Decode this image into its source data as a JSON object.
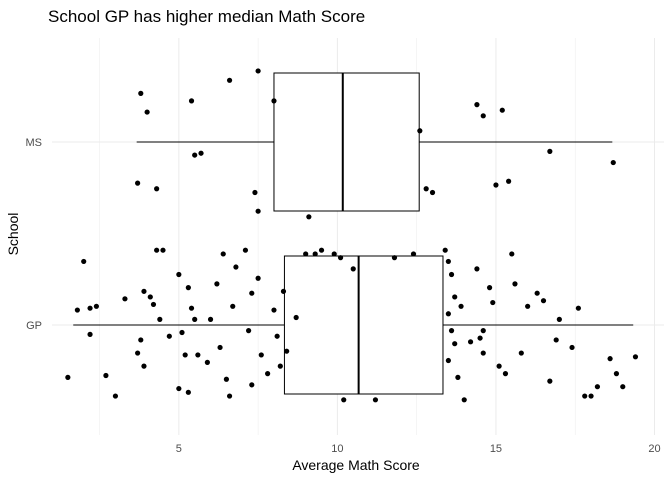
{
  "chart_data": {
    "type": "boxplot",
    "title": "School GP has higher median Math Score",
    "xlabel": "Average Math Score",
    "ylabel": "School",
    "xlim": [
      1.0,
      20.3
    ],
    "xticks": [
      5,
      10,
      15,
      20
    ],
    "categories": [
      "GP",
      "MS"
    ],
    "grid": true,
    "background": "#ffffff",
    "grid_color": "#ebebeb",
    "box": {
      "MS": {
        "whisker_low": 3.67,
        "q1": 8.0,
        "median": 10.17,
        "q3": 12.58,
        "whisker_high": 18.67
      },
      "GP": {
        "whisker_low": 1.67,
        "q1": 8.33,
        "median": 10.67,
        "q3": 13.33,
        "whisker_high": 19.33
      }
    },
    "jitter_points": {
      "MS": [
        [
          3.8,
          0.26
        ],
        [
          4.0,
          0.16
        ],
        [
          5.4,
          0.22
        ],
        [
          6.6,
          0.33
        ],
        [
          7.5,
          0.38
        ],
        [
          8.0,
          0.22
        ],
        [
          5.5,
          -0.07
        ],
        [
          5.7,
          -0.06
        ],
        [
          3.7,
          -0.22
        ],
        [
          4.3,
          -0.25
        ],
        [
          7.4,
          -0.27
        ],
        [
          7.5,
          -0.37
        ],
        [
          9.1,
          -0.4
        ],
        [
          12.6,
          0.06
        ],
        [
          12.8,
          -0.25
        ],
        [
          13.0,
          -0.27
        ],
        [
          14.4,
          0.2
        ],
        [
          14.6,
          0.14
        ],
        [
          15.2,
          0.17
        ],
        [
          15.0,
          -0.23
        ],
        [
          15.4,
          -0.21
        ],
        [
          16.7,
          -0.05
        ],
        [
          18.7,
          -0.11
        ]
      ],
      "GP": [
        [
          1.5,
          -0.28
        ],
        [
          2.0,
          0.34
        ],
        [
          1.8,
          0.08
        ],
        [
          2.2,
          0.09
        ],
        [
          2.4,
          0.1
        ],
        [
          2.2,
          -0.05
        ],
        [
          2.7,
          -0.27
        ],
        [
          3.0,
          -0.38
        ],
        [
          3.3,
          0.14
        ],
        [
          3.9,
          0.18
        ],
        [
          3.7,
          -0.15
        ],
        [
          3.9,
          -0.22
        ],
        [
          3.8,
          -0.08
        ],
        [
          4.1,
          0.15
        ],
        [
          4.2,
          0.11
        ],
        [
          4.3,
          0.4
        ],
        [
          4.5,
          0.4
        ],
        [
          4.4,
          0.03
        ],
        [
          4.7,
          -0.06
        ],
        [
          5.0,
          0.27
        ],
        [
          5.1,
          -0.04
        ],
        [
          5.3,
          0.2
        ],
        [
          5.4,
          0.09
        ],
        [
          5.5,
          0.03
        ],
        [
          5.2,
          -0.16
        ],
        [
          5.6,
          -0.16
        ],
        [
          5.9,
          -0.2
        ],
        [
          5.0,
          -0.34
        ],
        [
          5.3,
          -0.36
        ],
        [
          6.0,
          0.03
        ],
        [
          6.2,
          0.22
        ],
        [
          6.4,
          0.38
        ],
        [
          6.3,
          -0.12
        ],
        [
          6.5,
          -0.29
        ],
        [
          6.6,
          -0.38
        ],
        [
          6.7,
          0.1
        ],
        [
          6.8,
          0.31
        ],
        [
          7.1,
          0.4
        ],
        [
          7.3,
          0.17
        ],
        [
          7.5,
          0.25
        ],
        [
          7.2,
          -0.03
        ],
        [
          7.6,
          -0.16
        ],
        [
          7.8,
          -0.26
        ],
        [
          7.3,
          -0.32
        ],
        [
          8.0,
          0.08
        ],
        [
          8.3,
          0.18
        ],
        [
          8.1,
          -0.06
        ],
        [
          8.4,
          -0.14
        ],
        [
          8.2,
          -0.22
        ],
        [
          9.0,
          0.38
        ],
        [
          9.3,
          0.38
        ],
        [
          9.5,
          0.4
        ],
        [
          8.7,
          0.04
        ],
        [
          9.9,
          0.38
        ],
        [
          10.1,
          0.36
        ],
        [
          10.5,
          0.3
        ],
        [
          10.2,
          -0.4
        ],
        [
          11.2,
          -0.4
        ],
        [
          11.8,
          0.36
        ],
        [
          12.4,
          0.38
        ],
        [
          13.4,
          0.4
        ],
        [
          13.5,
          0.34
        ],
        [
          13.6,
          0.27
        ],
        [
          13.7,
          0.15
        ],
        [
          13.5,
          0.06
        ],
        [
          13.6,
          -0.03
        ],
        [
          13.7,
          -0.1
        ],
        [
          13.5,
          -0.19
        ],
        [
          13.8,
          -0.28
        ],
        [
          13.9,
          0.1
        ],
        [
          14.0,
          -0.4
        ],
        [
          14.2,
          -0.09
        ],
        [
          14.5,
          -0.07
        ],
        [
          14.6,
          -0.03
        ],
        [
          14.4,
          0.3
        ],
        [
          14.6,
          -0.15
        ],
        [
          14.8,
          0.2
        ],
        [
          14.9,
          0.12
        ],
        [
          15.1,
          -0.22
        ],
        [
          15.3,
          -0.26
        ],
        [
          15.5,
          0.38
        ],
        [
          15.6,
          0.22
        ],
        [
          15.8,
          -0.15
        ],
        [
          16.0,
          0.1
        ],
        [
          16.3,
          0.17
        ],
        [
          16.5,
          0.13
        ],
        [
          16.7,
          -0.3
        ],
        [
          16.9,
          -0.08
        ],
        [
          17.0,
          0.03
        ],
        [
          17.4,
          -0.12
        ],
        [
          17.6,
          0.09
        ],
        [
          17.8,
          -0.38
        ],
        [
          18.0,
          -0.38
        ],
        [
          18.2,
          -0.33
        ],
        [
          18.6,
          -0.18
        ],
        [
          18.8,
          -0.26
        ],
        [
          19.0,
          -0.33
        ],
        [
          19.4,
          -0.17
        ]
      ]
    }
  }
}
